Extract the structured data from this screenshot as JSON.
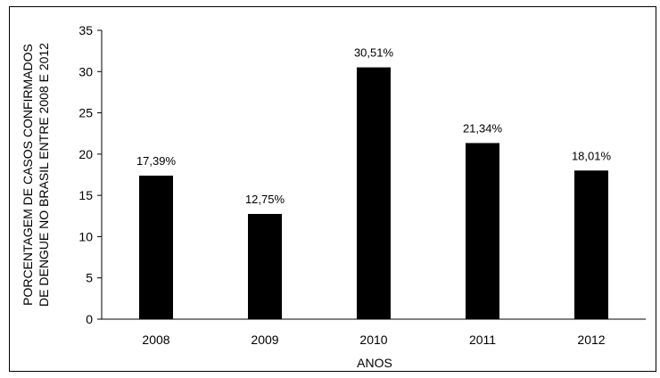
{
  "chart_data": {
    "type": "bar",
    "categories": [
      "2008",
      "2009",
      "2010",
      "2011",
      "2012"
    ],
    "values": [
      17.39,
      12.75,
      30.51,
      21.34,
      18.01
    ],
    "data_labels": [
      "17,39%",
      "12,75%",
      "30,51%",
      "21,34%",
      "18,01%"
    ],
    "title": "",
    "xlabel": "ANOS",
    "ylabel_lines": [
      "PORCENTAGEM DE CASOS CONFIRMADOS",
      "DE DENGUE NO BRASIL ENTRE 2008 E 2012"
    ],
    "ylim": [
      0,
      35
    ],
    "yticks": [
      0,
      5,
      10,
      15,
      20,
      25,
      30,
      35
    ],
    "grid": false,
    "legend": "none",
    "bar_color": "#000000"
  }
}
